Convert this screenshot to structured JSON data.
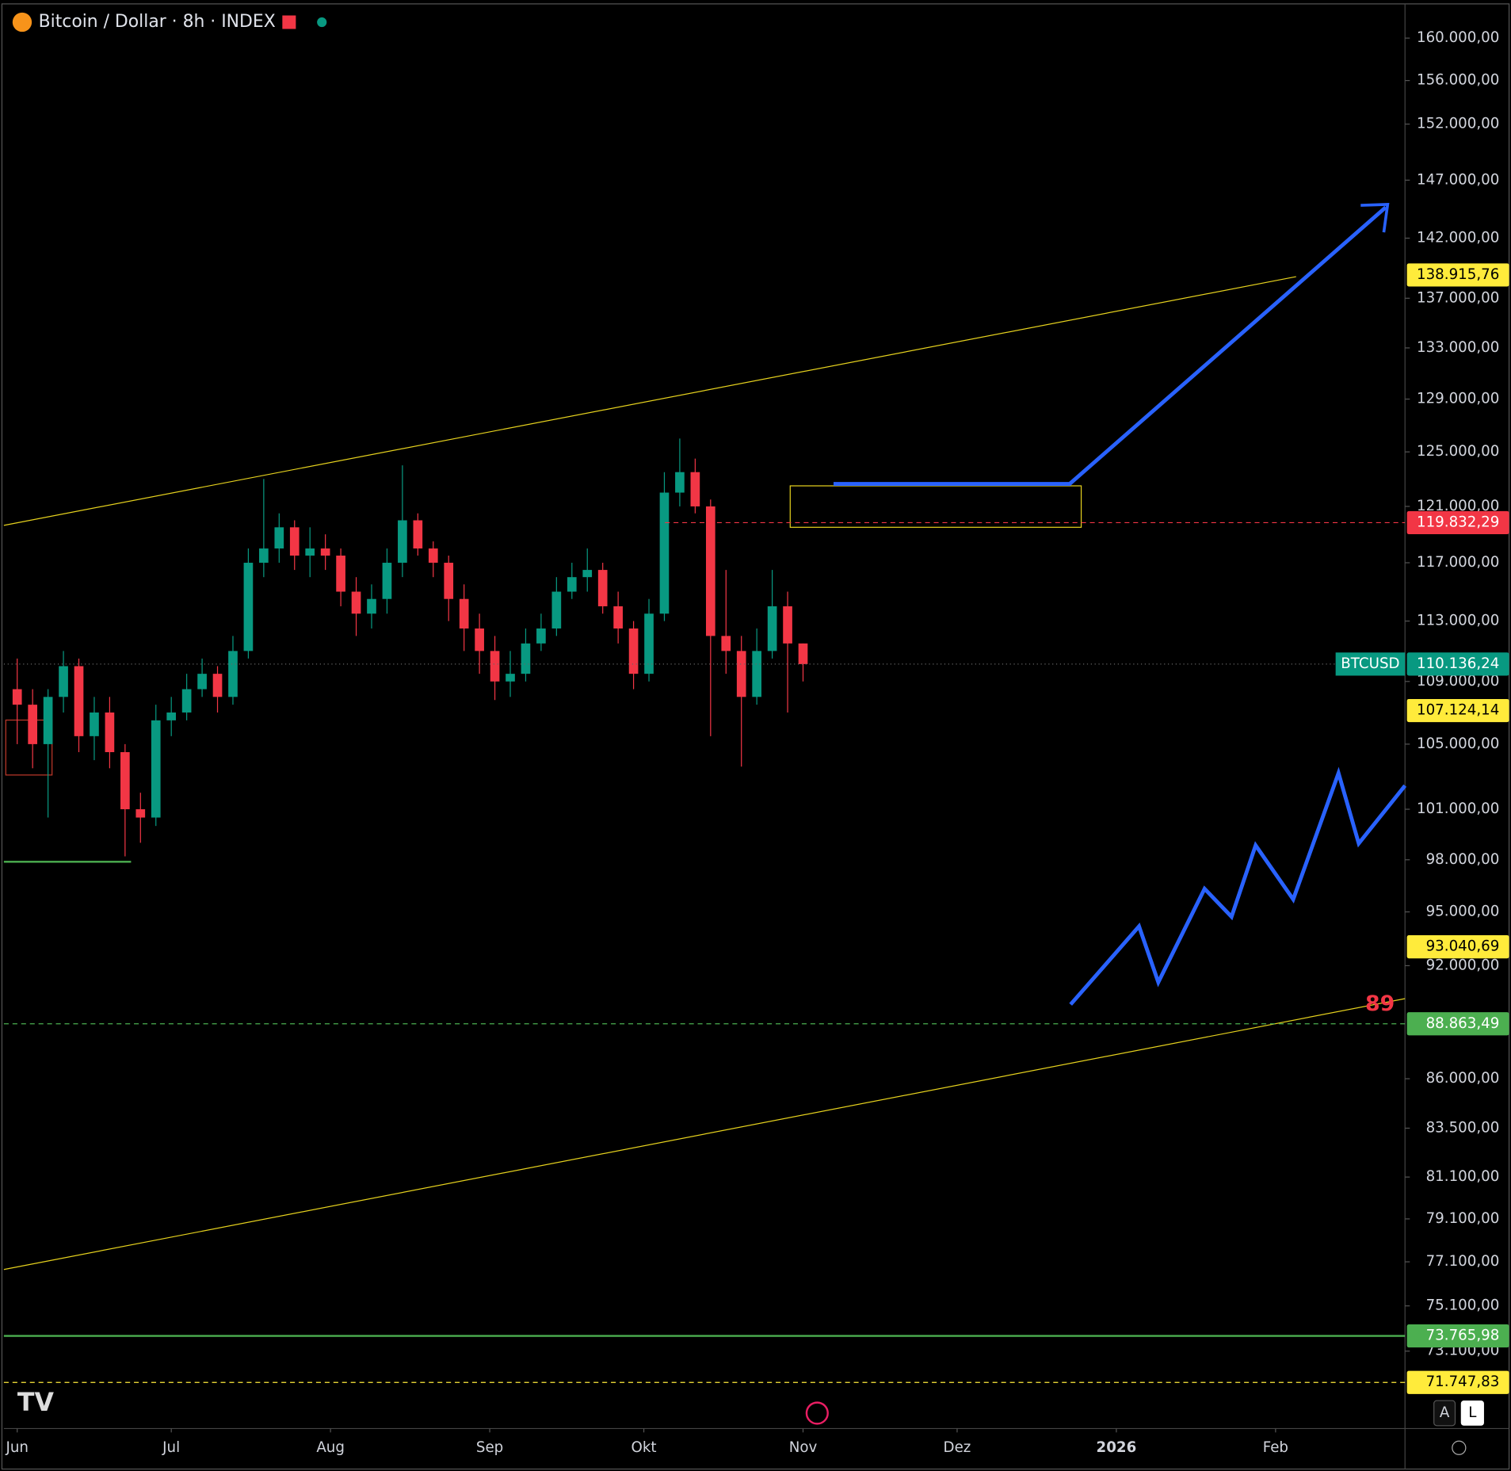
{
  "chart_data": {
    "type": "candlestick",
    "title": "Bitcoin / Dollar · 8h · INDEX",
    "log_scale": true,
    "grid": false,
    "up_color": "#089981",
    "down_color": "#f23645",
    "x": [
      0,
      3,
      6,
      9,
      12,
      15,
      18,
      21,
      24,
      27,
      30,
      33,
      36,
      39,
      42,
      45,
      48,
      51,
      54,
      57,
      60,
      63,
      66,
      69,
      72,
      75,
      78,
      81,
      84,
      87,
      90,
      93,
      96,
      99,
      102,
      105,
      108,
      111,
      114,
      117,
      120,
      123,
      126,
      129,
      132,
      135,
      138,
      141,
      144,
      147,
      150,
      153
    ],
    "open": [
      108500,
      107500,
      105000,
      108000,
      110000,
      105500,
      107000,
      104500,
      101000,
      100500,
      106500,
      107000,
      108500,
      109500,
      108000,
      111000,
      117000,
      118000,
      119500,
      117500,
      118000,
      117500,
      115000,
      113500,
      114500,
      117000,
      120000,
      118000,
      117000,
      114500,
      112500,
      111000,
      109000,
      109500,
      111500,
      112500,
      115000,
      116000,
      116500,
      114000,
      112500,
      109500,
      113500,
      122000,
      123500,
      121000,
      112000,
      111000,
      108000,
      111000,
      114000,
      111500
    ],
    "high": [
      110500,
      108500,
      108500,
      111000,
      110500,
      108000,
      108000,
      105000,
      102000,
      107500,
      108000,
      109500,
      110500,
      110000,
      112000,
      118000,
      123000,
      120500,
      120000,
      119500,
      119000,
      118000,
      116000,
      115500,
      118000,
      124000,
      120500,
      118500,
      117500,
      115500,
      113500,
      112000,
      111000,
      112500,
      113500,
      116000,
      117000,
      118000,
      117000,
      115000,
      113000,
      114500,
      123500,
      126000,
      124500,
      121500,
      116500,
      112000,
      112500,
      116500,
      115000,
      111500
    ],
    "low": [
      105000,
      103500,
      100500,
      107000,
      104500,
      104000,
      103500,
      98200,
      99000,
      100000,
      105500,
      106500,
      108000,
      107000,
      107500,
      110500,
      116000,
      117000,
      116500,
      116000,
      116500,
      114000,
      112000,
      112500,
      113500,
      116000,
      117500,
      116000,
      113000,
      111000,
      109500,
      107800,
      108000,
      109000,
      111000,
      112000,
      114500,
      115000,
      113500,
      111500,
      108500,
      109000,
      113000,
      121000,
      120500,
      105500,
      109500,
      103600,
      107500,
      110500,
      107000,
      109000
    ],
    "close": [
      107500,
      105000,
      108000,
      110000,
      105500,
      107000,
      104500,
      101000,
      100500,
      106500,
      107000,
      108500,
      109500,
      108000,
      111000,
      117000,
      118000,
      119500,
      117500,
      118000,
      117500,
      115000,
      113500,
      114500,
      117000,
      120000,
      118000,
      117000,
      114500,
      112500,
      111000,
      109000,
      109500,
      111500,
      112500,
      115000,
      116000,
      116500,
      114000,
      112500,
      109500,
      113500,
      122000,
      123500,
      121000,
      112000,
      111000,
      108000,
      111000,
      114000,
      111500,
      110136
    ],
    "xlim": [
      -2.6,
      270.2
    ],
    "xticks": [
      {
        "value": 0,
        "label": "Jun"
      },
      {
        "value": 30,
        "label": "Jul"
      },
      {
        "value": 61,
        "label": "Aug"
      },
      {
        "value": 92,
        "label": "Sep"
      },
      {
        "value": 122,
        "label": "Okt"
      },
      {
        "value": 153,
        "label": "Nov"
      },
      {
        "value": 183,
        "label": "Dez"
      },
      {
        "value": 214,
        "label": "2026"
      },
      {
        "value": 245,
        "label": "Feb"
      }
    ],
    "ylim": [
      69800,
      163300
    ],
    "yticks": [
      {
        "value": 160000,
        "label": "160.000,00"
      },
      {
        "value": 156000,
        "label": "156.000,00"
      },
      {
        "value": 152000,
        "label": "152.000,00"
      },
      {
        "value": 147000,
        "label": "147.000,00"
      },
      {
        "value": 142000,
        "label": "142.000,00"
      },
      {
        "value": 137000,
        "label": "137.000,00"
      },
      {
        "value": 133000,
        "label": "133.000,00"
      },
      {
        "value": 129000,
        "label": "129.000,00"
      },
      {
        "value": 125000,
        "label": "125.000,00"
      },
      {
        "value": 121000,
        "label": "121.000,00"
      },
      {
        "value": 117000,
        "label": "117.000,00"
      },
      {
        "value": 113000,
        "label": "113.000,00"
      },
      {
        "value": 109000,
        "label": "109.000,00"
      },
      {
        "value": 105000,
        "label": "105.000,00"
      },
      {
        "value": 101000,
        "label": "101.000,00"
      },
      {
        "value": 98000,
        "label": "98.000,00"
      },
      {
        "value": 95000,
        "label": "95.000,00"
      },
      {
        "value": 92000,
        "label": "92.000,00"
      },
      {
        "value": 86000,
        "label": "86.000,00"
      },
      {
        "value": 83500,
        "label": "83.500,00"
      },
      {
        "value": 81100,
        "label": "81.100,00"
      },
      {
        "value": 79100,
        "label": "79.100,00"
      },
      {
        "value": 77100,
        "label": "77.100,00"
      },
      {
        "value": 75100,
        "label": "75.100,00"
      },
      {
        "value": 73100,
        "label": "73.100,00"
      }
    ],
    "price_lines": [
      {
        "value": 138915.76,
        "label": "138.915,76",
        "color": "#ffeb3b",
        "text_color": "#000000",
        "style": "none"
      },
      {
        "value": 119832.29,
        "label": "119.832,29",
        "color": "#f23645",
        "text_color": "#ffffff",
        "style": "dashed"
      },
      {
        "value": 110136.24,
        "label": "110.136,24",
        "color": "#089981",
        "text_color": "#ffffff",
        "style": "dotted",
        "tag": "BTCUSD"
      },
      {
        "value": 107124.14,
        "label": "107.124,14",
        "color": "#ffeb3b",
        "text_color": "#000000",
        "style": "none"
      },
      {
        "value": 93040.69,
        "label": "93.040,69",
        "color": "#ffeb3b",
        "text_color": "#000000",
        "style": "none"
      },
      {
        "value": 88863.49,
        "label": "88.863,49",
        "color": "#4caf50",
        "text_color": "#ffffff",
        "style": "dashed"
      },
      {
        "value": 73765.98,
        "label": "73.765,98",
        "color": "#4caf50",
        "text_color": "#ffffff",
        "style": "solid"
      },
      {
        "value": 71747.83,
        "label": "71.747,83",
        "color": "#ffeb3b",
        "text_color": "#000000",
        "style": "dashed"
      }
    ],
    "annotation": "89",
    "buttons": [
      "A",
      "L"
    ]
  }
}
